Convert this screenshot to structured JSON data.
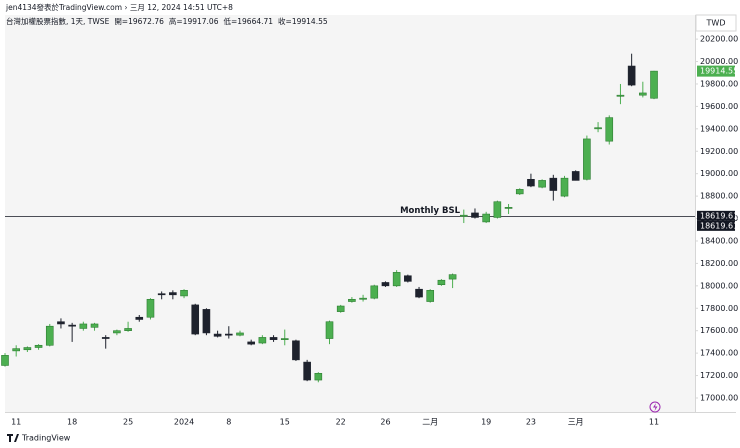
{
  "header": {
    "attribution": "jen4134發表於TradingView.com › 三月 12, 2024 14:51 UTC+8",
    "footer": "TradingView"
  },
  "chart_data": {
    "type": "candlestick",
    "legend": [
      "台灣加權股票指數, 1天, TWSE",
      "開=19672.76",
      "高=19917.06",
      "低=19664.71",
      "收=19914.55"
    ],
    "currency": "TWD",
    "categories": [
      null,
      "11",
      null,
      null,
      null,
      null,
      "18",
      null,
      null,
      null,
      null,
      "25",
      null,
      null,
      null,
      null,
      "2024",
      null,
      null,
      null,
      "8",
      null,
      null,
      null,
      null,
      "15",
      null,
      null,
      null,
      null,
      "22",
      null,
      null,
      null,
      "26",
      null,
      null,
      null,
      "二月",
      null,
      null,
      null,
      null,
      "19",
      null,
      null,
      null,
      "23",
      null,
      null,
      null,
      "三月",
      null,
      null,
      null,
      null,
      null,
      null,
      "11"
    ],
    "open": [
      17290,
      17420,
      17430,
      17450,
      17470,
      17680,
      17650,
      17620,
      17630,
      17540,
      17580,
      17600,
      17720,
      17720,
      17930,
      17940,
      17910,
      17830,
      17790,
      17570,
      17570,
      17560,
      17500,
      17490,
      17540,
      17520,
      17510,
      17320,
      17160,
      17530,
      17770,
      17860,
      17880,
      17890,
      18030,
      18000,
      18090,
      17970,
      17860,
      18010,
      18060,
      18620,
      18650,
      18570,
      18610,
      18690,
      18820,
      18950,
      18880,
      18960,
      18800,
      19020,
      18950,
      19400,
      19290,
      19690,
      19960,
      19700,
      19672.76
    ],
    "high": [
      17400,
      17470,
      17460,
      17480,
      17660,
      17710,
      17670,
      17680,
      17670,
      17560,
      17610,
      17680,
      17740,
      17890,
      17950,
      17960,
      17970,
      17840,
      17800,
      17600,
      17640,
      17600,
      17520,
      17560,
      17560,
      17610,
      17520,
      17340,
      17230,
      17690,
      17830,
      17900,
      17920,
      18010,
      18040,
      18140,
      18100,
      17990,
      17970,
      18060,
      18110,
      18680,
      18690,
      18660,
      18760,
      18730,
      18870,
      19000,
      18950,
      18990,
      18980,
      19030,
      19340,
      19460,
      19520,
      19800,
      20070,
      19820,
      19917.06
    ],
    "low": [
      17280,
      17370,
      17410,
      17430,
      17460,
      17620,
      17500,
      17600,
      17600,
      17440,
      17560,
      17590,
      17680,
      17700,
      17880,
      17880,
      17890,
      17560,
      17560,
      17540,
      17530,
      17550,
      17470,
      17480,
      17500,
      17470,
      17330,
      17150,
      17140,
      17480,
      17760,
      17850,
      17860,
      17880,
      17990,
      17990,
      18030,
      17890,
      17850,
      18000,
      17980,
      18560,
      18600,
      18560,
      18600,
      18640,
      18810,
      18880,
      18870,
      18760,
      18790,
      18940,
      18940,
      19370,
      19260,
      19620,
      19780,
      19680,
      19664.71
    ],
    "close": [
      17380,
      17440,
      17450,
      17470,
      17640,
      17660,
      17640,
      17660,
      17660,
      17530,
      17600,
      17620,
      17700,
      17880,
      17920,
      17920,
      17960,
      17570,
      17580,
      17550,
      17560,
      17580,
      17480,
      17540,
      17520,
      17530,
      17340,
      17160,
      17220,
      17680,
      17820,
      17880,
      17890,
      18000,
      18000,
      18120,
      18040,
      17900,
      17960,
      18050,
      18100,
      18630,
      18610,
      18640,
      18750,
      18700,
      18860,
      18890,
      18940,
      18850,
      18960,
      18940,
      19310,
      19410,
      19500,
      19700,
      19790,
      19720,
      19914.55
    ],
    "up_color": "#4caf50",
    "down_color": "#1e222d",
    "ylim": [
      16875,
      20415
    ],
    "yticks": [
      {
        "value": 17000,
        "label": "17000.00"
      },
      {
        "value": 17200,
        "label": "17200.00"
      },
      {
        "value": 17400,
        "label": "17400.00"
      },
      {
        "value": 17600,
        "label": "17600.00"
      },
      {
        "value": 17800,
        "label": "17800.00"
      },
      {
        "value": 18000,
        "label": "18000.00"
      },
      {
        "value": 18200,
        "label": "18200.00"
      },
      {
        "value": 18400,
        "label": "18400.00"
      },
      {
        "value": 18600,
        "label": "18600.00"
      },
      {
        "value": 18800,
        "label": "18800.00"
      },
      {
        "value": 19000,
        "label": "19000.00"
      },
      {
        "value": 19200,
        "label": "19200.00"
      },
      {
        "value": 19400,
        "label": "19400.00"
      },
      {
        "value": 19600,
        "label": "19600.00"
      },
      {
        "value": 19800,
        "label": "19800.00"
      },
      {
        "value": 20000,
        "label": "20000.00"
      },
      {
        "value": 20200,
        "label": "20200.00"
      }
    ],
    "hline": {
      "value": 18619.61,
      "label": "Monthly BSL"
    }
  }
}
